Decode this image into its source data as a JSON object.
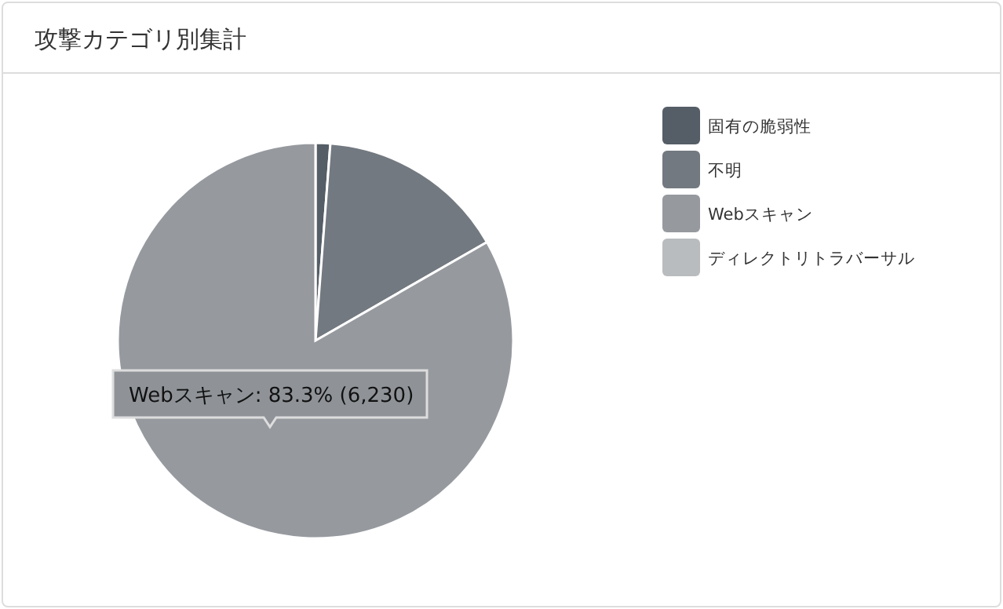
{
  "chart_data": {
    "type": "pie",
    "title": "攻撃カテゴリ別集計",
    "categories": [
      "固有の脆弱性",
      "不明",
      "Webスキャン",
      "ディレクトリトラバーサル"
    ],
    "values": [
      1.2,
      15.5,
      83.3,
      0
    ],
    "colors": [
      "#555d66",
      "#737980",
      "#969a9f",
      "#b9bcbf"
    ],
    "legend": "right",
    "annotations": [
      "Webスキャン: 83.3% (6,230)"
    ]
  }
}
